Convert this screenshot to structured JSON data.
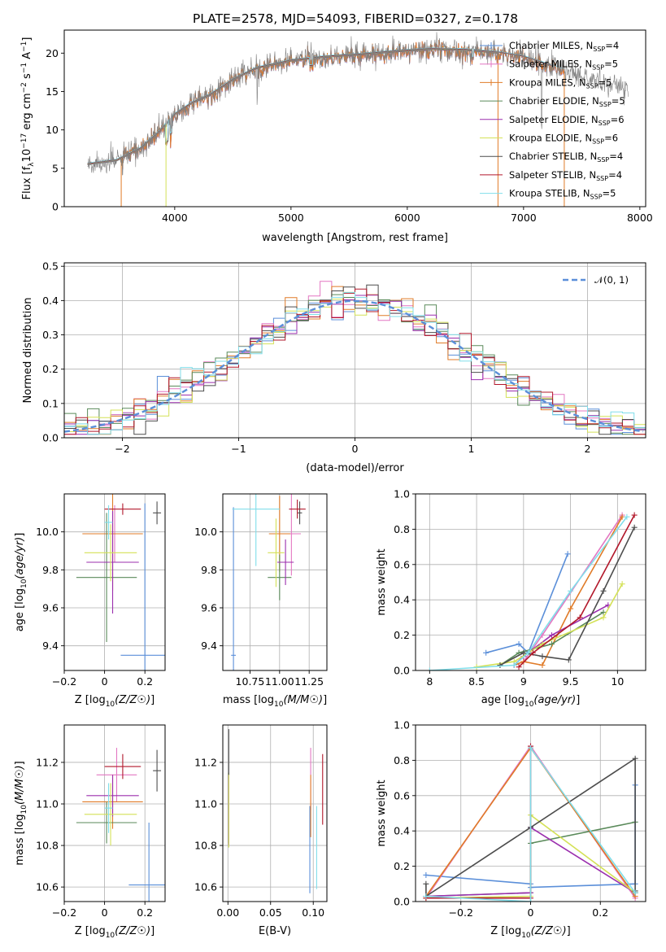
{
  "figure_title": "PLATE=2578, MJD=54093, FIBERID=0327, z=0.178",
  "colors": {
    "Chabrier MILES": "#5b8fd9",
    "Salpeter MILES": "#e377c2",
    "Kroupa MILES": "#e07b28",
    "Chabrier ELODIE": "#5a8a5a",
    "Salpeter ELODIE": "#9b2fae",
    "Kroupa ELODIE": "#d4e157",
    "Chabrier STELIB": "#4d4d4d",
    "Salpeter STELIB": "#b2182b",
    "Kroupa STELIB": "#80deea",
    "data_spectrum": "#808080",
    "normal_curve": "#5b8fd9"
  },
  "chart_data": [
    {
      "id": "spectrum",
      "type": "line",
      "xlabel": "wavelength [Angstrom, rest frame]",
      "ylabel": "Flux [f_λ10^-17 erg cm^-2 s^-1 A^-1]",
      "xlim": [
        3050,
        8050
      ],
      "ylim": [
        0,
        23
      ],
      "xticks": [
        4000,
        5000,
        6000,
        7000,
        8000
      ],
      "yticks": [
        0,
        5,
        10,
        15,
        20
      ],
      "grid": false,
      "legend_position": "top-right",
      "legend": [
        {
          "model": "Chabrier MILES",
          "text": "Chabrier MILES, N",
          "sub": "SSP",
          "val": "=4"
        },
        {
          "model": "Salpeter MILES",
          "text": "Salpeter MILES, N",
          "sub": "SSP",
          "val": "=5"
        },
        {
          "model": "Kroupa MILES",
          "text": "Kroupa MILES, N",
          "sub": "SSP",
          "val": "=5"
        },
        {
          "model": "Chabrier ELODIE",
          "text": "Chabrier ELODIE, N",
          "sub": "SSP",
          "val": "=5"
        },
        {
          "model": "Salpeter ELODIE",
          "text": "Salpeter ELODIE, N",
          "sub": "SSP",
          "val": "=6"
        },
        {
          "model": "Kroupa ELODIE",
          "text": "Kroupa ELODIE, N",
          "sub": "SSP",
          "val": "=6"
        },
        {
          "model": "Chabrier STELIB",
          "text": "Chabrier STELIB, N",
          "sub": "SSP",
          "val": "=4"
        },
        {
          "model": "Salpeter STELIB",
          "text": "Salpeter STELIB, N",
          "sub": "SSP",
          "val": "=4"
        },
        {
          "model": "Kroupa STELIB",
          "text": "Kroupa STELIB, N",
          "sub": "SSP",
          "val": "=5"
        }
      ],
      "continuum": {
        "x": [
          3250,
          3500,
          3700,
          3850,
          4000,
          4150,
          4300,
          4500,
          4700,
          5000,
          5300,
          5600,
          5900,
          6200,
          6500,
          6800,
          7000,
          7200,
          7400,
          7600,
          7800
        ],
        "y": [
          5.5,
          6.0,
          7.5,
          9.5,
          12.0,
          13.5,
          14.5,
          16.5,
          18.0,
          19.0,
          19.5,
          19.8,
          20.2,
          20.5,
          20.4,
          20.0,
          19.5,
          18.5,
          17.5,
          16.5,
          15.5
        ]
      },
      "model_x_range": {
        "Chabrier MILES": [
          3540,
          7350
        ],
        "Salpeter MILES": [
          3540,
          7350
        ],
        "Kroupa MILES": [
          3540,
          7350
        ],
        "Chabrier ELODIE": [
          3250,
          6780
        ],
        "Salpeter ELODIE": [
          3250,
          6780
        ],
        "Kroupa ELODIE": [
          3250,
          6780
        ],
        "Chabrier STELIB": [
          3250,
          7250
        ],
        "Salpeter STELIB": [
          3250,
          7250
        ],
        "Kroupa STELIB": [
          3250,
          7350
        ]
      }
    },
    {
      "id": "residual-hist",
      "type": "histogram",
      "xlabel": "(data-model)/error",
      "ylabel": "Normed distribution",
      "xlim": [
        -2.5,
        2.5
      ],
      "ylim": [
        0,
        0.51
      ],
      "xticks": [
        -2,
        -1,
        0,
        1,
        2
      ],
      "yticks": [
        0.0,
        0.1,
        0.2,
        0.3,
        0.4,
        0.5
      ],
      "grid": true,
      "legend_position": "top-right",
      "legend_label": "𝒩(0, 1)",
      "bin_width": 0.1,
      "bin_start": -2.5
    },
    {
      "id": "age-vs-Z",
      "type": "errorbar",
      "xlabel": "Z [log10(Z/Z☉)]",
      "ylabel": "age [log10(age/yr)]",
      "xlim": [
        -0.2,
        0.3
      ],
      "ylim": [
        9.27,
        10.2
      ],
      "xticks": [
        -0.2,
        0.0,
        0.2
      ],
      "yticks": [
        9.4,
        9.6,
        9.8,
        10.0
      ],
      "grid": true,
      "points": [
        {
          "model": "Chabrier MILES",
          "x": 0.2,
          "xerr": 0.12,
          "y": 9.35,
          "yerr": 0.8
        },
        {
          "model": "Salpeter MILES",
          "x": 0.05,
          "xerr": 0.11,
          "y": 9.99,
          "yerr": 0.15
        },
        {
          "model": "Kroupa MILES",
          "x": 0.04,
          "xerr": 0.15,
          "y": 9.99,
          "yerr": 0.3
        },
        {
          "model": "Chabrier ELODIE",
          "x": 0.01,
          "xerr": 0.15,
          "y": 9.76,
          "yerr": 0.34
        },
        {
          "model": "Salpeter ELODIE",
          "x": 0.04,
          "xerr": 0.13,
          "y": 9.84,
          "yerr": 0.27
        },
        {
          "model": "Kroupa ELODIE",
          "x": 0.03,
          "xerr": 0.13,
          "y": 9.89,
          "yerr": 0.15
        },
        {
          "model": "Chabrier STELIB",
          "x": 0.26,
          "xerr": 0.02,
          "y": 10.1,
          "yerr": 0.06
        },
        {
          "model": "Salpeter STELIB",
          "x": 0.09,
          "xerr": 0.09,
          "y": 10.12,
          "yerr": 0.03
        },
        {
          "model": "Kroupa STELIB",
          "x": 0.02,
          "xerr": 0.02,
          "y": 10.05,
          "yerr": 0.09
        }
      ]
    },
    {
      "id": "age-vs-mass",
      "type": "errorbar",
      "xlabel": "mass [log10(M/M☉)]",
      "ylabel": "",
      "xlim": [
        10.52,
        11.4
      ],
      "ylim": [
        9.27,
        10.2
      ],
      "xticks": [
        10.75,
        11.0,
        11.25
      ],
      "xticklabels": [
        "10.75",
        "11.00",
        "11.25"
      ],
      "yticks": [
        9.4,
        9.6,
        9.8,
        10.0
      ],
      "grid": true,
      "points": [
        {
          "model": "Chabrier MILES",
          "x": 10.61,
          "xerr": 0.02,
          "y": 9.35,
          "yerr": 0.78
        },
        {
          "model": "Salpeter MILES",
          "x": 11.1,
          "xerr": 0.08,
          "y": 9.99,
          "yerr": 0.22
        },
        {
          "model": "Kroupa MILES",
          "x": 11.0,
          "xerr": 0.09,
          "y": 9.99,
          "yerr": 0.2
        },
        {
          "model": "Chabrier ELODIE",
          "x": 11.0,
          "xerr": 0.1,
          "y": 9.76,
          "yerr": 0.12
        },
        {
          "model": "Salpeter ELODIE",
          "x": 11.05,
          "xerr": 0.07,
          "y": 9.84,
          "yerr": 0.12
        },
        {
          "model": "Kroupa ELODIE",
          "x": 10.97,
          "xerr": 0.07,
          "y": 9.89,
          "yerr": 0.18
        },
        {
          "model": "Chabrier STELIB",
          "x": 11.17,
          "xerr": 0.02,
          "y": 10.1,
          "yerr": 0.06
        },
        {
          "model": "Salpeter STELIB",
          "x": 11.15,
          "xerr": 0.07,
          "y": 10.12,
          "yerr": 0.05
        },
        {
          "model": "Kroupa STELIB",
          "x": 10.8,
          "xerr": 0.2,
          "y": 10.12,
          "yerr": 0.3
        }
      ]
    },
    {
      "id": "mass-weight-vs-age",
      "type": "line",
      "xlabel": "age [log10(age/yr)]",
      "ylabel": "mass weight",
      "xlim": [
        7.85,
        10.3
      ],
      "ylim": [
        0,
        1.0
      ],
      "xticks": [
        8.0,
        8.5,
        9.0,
        9.5,
        10.0
      ],
      "yticks": [
        0.0,
        0.2,
        0.4,
        0.6,
        0.8,
        1.0
      ],
      "grid": true,
      "series": [
        {
          "model": "Chabrier MILES",
          "x": [
            8.6,
            8.95,
            9.05,
            9.47
          ],
          "y": [
            0.1,
            0.15,
            0.1,
            0.66
          ]
        },
        {
          "model": "Salpeter MILES",
          "x": [
            8.9,
            9.0,
            9.2,
            10.05
          ],
          "y": [
            0.03,
            0.05,
            0.2,
            0.88
          ]
        },
        {
          "model": "Kroupa MILES",
          "x": [
            8.9,
            9.0,
            9.2,
            9.5,
            10.05
          ],
          "y": [
            0.03,
            0.05,
            0.03,
            0.35,
            0.87
          ]
        },
        {
          "model": "Chabrier ELODIE",
          "x": [
            8.75,
            8.95,
            9.3,
            9.85
          ],
          "y": [
            0.03,
            0.1,
            0.15,
            0.33
          ]
        },
        {
          "model": "Salpeter ELODIE",
          "x": [
            8.9,
            9.0,
            9.3,
            9.9
          ],
          "y": [
            0.03,
            0.08,
            0.2,
            0.37
          ]
        },
        {
          "model": "Kroupa ELODIE",
          "x": [
            8.5,
            8.9,
            9.2,
            9.85,
            10.05
          ],
          "y": [
            0.02,
            0.05,
            0.15,
            0.3,
            0.49
          ]
        },
        {
          "model": "Chabrier STELIB",
          "x": [
            8.75,
            9.0,
            9.2,
            9.48,
            9.85,
            10.18
          ],
          "y": [
            0.03,
            0.1,
            0.08,
            0.06,
            0.45,
            0.81
          ]
        },
        {
          "model": "Salpeter STELIB",
          "x": [
            8.95,
            9.1,
            9.6,
            10.18
          ],
          "y": [
            0.02,
            0.1,
            0.3,
            0.88
          ]
        },
        {
          "model": "Kroupa STELIB",
          "x": [
            8.0,
            8.9,
            9.05,
            9.5,
            10.1
          ],
          "y": [
            0.0,
            0.03,
            0.1,
            0.45,
            0.87
          ]
        }
      ]
    },
    {
      "id": "mass-vs-Z",
      "type": "errorbar",
      "xlabel": "Z [log10(Z/Z☉)]",
      "ylabel": "mass [log10(M/M☉)]",
      "xlim": [
        -0.2,
        0.3
      ],
      "ylim": [
        10.53,
        11.38
      ],
      "xticks": [
        -0.2,
        0.0,
        0.2
      ],
      "yticks": [
        10.6,
        10.8,
        11.0,
        11.2
      ],
      "grid": true,
      "points": [
        {
          "model": "Chabrier MILES",
          "x": 0.22,
          "xerr": 0.1,
          "y": 10.61,
          "yerr": 0.3
        },
        {
          "model": "Salpeter MILES",
          "x": 0.06,
          "xerr": 0.1,
          "y": 11.14,
          "yerr": 0.13
        },
        {
          "model": "Kroupa MILES",
          "x": 0.04,
          "xerr": 0.15,
          "y": 11.01,
          "yerr": 0.13
        },
        {
          "model": "Chabrier ELODIE",
          "x": 0.01,
          "xerr": 0.15,
          "y": 10.91,
          "yerr": 0.1
        },
        {
          "model": "Salpeter ELODIE",
          "x": 0.04,
          "xerr": 0.13,
          "y": 11.04,
          "yerr": 0.1
        },
        {
          "model": "Kroupa ELODIE",
          "x": 0.03,
          "xerr": 0.13,
          "y": 10.95,
          "yerr": 0.15
        },
        {
          "model": "Chabrier STELIB",
          "x": 0.26,
          "xerr": 0.02,
          "y": 11.16,
          "yerr": 0.1
        },
        {
          "model": "Salpeter STELIB",
          "x": 0.09,
          "xerr": 0.09,
          "y": 11.18,
          "yerr": 0.06
        },
        {
          "model": "Kroupa STELIB",
          "x": 0.02,
          "xerr": 0.02,
          "y": 10.98,
          "yerr": 0.12
        }
      ]
    },
    {
      "id": "mass-vs-ebv",
      "type": "errorbar",
      "xlabel": "E(B-V)",
      "ylabel": "",
      "xlim": [
        -0.006,
        0.116
      ],
      "ylim": [
        10.53,
        11.38
      ],
      "xticks": [
        0.0,
        0.05,
        0.1
      ],
      "xticklabels": [
        "0.00",
        "0.05",
        "0.10"
      ],
      "yticks": [
        10.6,
        10.8,
        11.0,
        11.2
      ],
      "grid": true,
      "points": [
        {
          "model": "Chabrier MILES",
          "x": 0.096,
          "xerr": 0,
          "y": 10.78,
          "yerr": 0.21
        },
        {
          "model": "Salpeter MILES",
          "x": 0.097,
          "xerr": 0,
          "y": 11.12,
          "yerr": 0.15
        },
        {
          "model": "Kroupa MILES",
          "x": 0.097,
          "xerr": 0,
          "y": 10.99,
          "yerr": 0.15
        },
        {
          "model": "Chabrier ELODIE",
          "x": 0.001,
          "xerr": 0,
          "y": 10.98,
          "yerr": 0.17
        },
        {
          "model": "Salpeter ELODIE",
          "x": 0.001,
          "xerr": 0,
          "y": 10.97,
          "yerr": 0.17
        },
        {
          "model": "Kroupa ELODIE",
          "x": 0.001,
          "xerr": 0,
          "y": 10.97,
          "yerr": 0.18
        },
        {
          "model": "Chabrier STELIB",
          "x": 0.001,
          "xerr": 0,
          "y": 11.25,
          "yerr": 0.11
        },
        {
          "model": "Salpeter STELIB",
          "x": 0.111,
          "xerr": 0,
          "y": 11.07,
          "yerr": 0.17
        },
        {
          "model": "Kroupa STELIB",
          "x": 0.104,
          "xerr": 0,
          "y": 10.79,
          "yerr": 0.2
        }
      ]
    },
    {
      "id": "mass-weight-vs-Z",
      "type": "line",
      "xlabel": "Z [log10(Z/Z☉)]",
      "ylabel": "mass weight",
      "xlim": [
        -0.33,
        0.33
      ],
      "ylim": [
        0,
        1.0
      ],
      "xticks": [
        -0.2,
        0.0,
        0.2
      ],
      "yticks": [
        0.0,
        0.2,
        0.4,
        0.6,
        0.8,
        1.0
      ],
      "grid": true,
      "series": [
        {
          "model": "Chabrier MILES",
          "x": [
            -0.3,
            0.0,
            0.0,
            0.3,
            0.3
          ],
          "y": [
            0.15,
            0.1,
            0.08,
            0.1,
            0.66
          ]
        },
        {
          "model": "Salpeter MILES",
          "x": [
            -0.3,
            0.0,
            0.3
          ],
          "y": [
            0.02,
            0.88,
            0.02
          ]
        },
        {
          "model": "Kroupa MILES",
          "x": [
            -0.3,
            0.0,
            0.3
          ],
          "y": [
            0.03,
            0.87,
            0.03
          ]
        },
        {
          "model": "Chabrier ELODIE",
          "x": [
            -0.3,
            0.0,
            0.0,
            0.3
          ],
          "y": [
            0.03,
            0.05,
            0.33,
            0.45
          ]
        },
        {
          "model": "Salpeter ELODIE",
          "x": [
            -0.3,
            0.0,
            0.0,
            0.3
          ],
          "y": [
            0.03,
            0.05,
            0.42,
            0.05
          ]
        },
        {
          "model": "Kroupa ELODIE",
          "x": [
            -0.3,
            0.0,
            0.0,
            0.3
          ],
          "y": [
            0.02,
            0.03,
            0.49,
            0.05
          ]
        },
        {
          "model": "Chabrier STELIB",
          "x": [
            -0.3,
            -0.3,
            0.0,
            0.3,
            0.3,
            0.3
          ],
          "y": [
            0.1,
            0.03,
            0.42,
            0.81,
            0.06,
            0.05
          ]
        },
        {
          "model": "Salpeter STELIB",
          "x": [
            -0.3,
            0.0,
            0.0
          ],
          "y": [
            0.02,
            0.02,
            0.88
          ]
        },
        {
          "model": "Kroupa STELIB",
          "x": [
            -0.3,
            0.0,
            0.0,
            0.3
          ],
          "y": [
            0.03,
            0.0,
            0.87,
            0.05
          ]
        }
      ]
    }
  ]
}
